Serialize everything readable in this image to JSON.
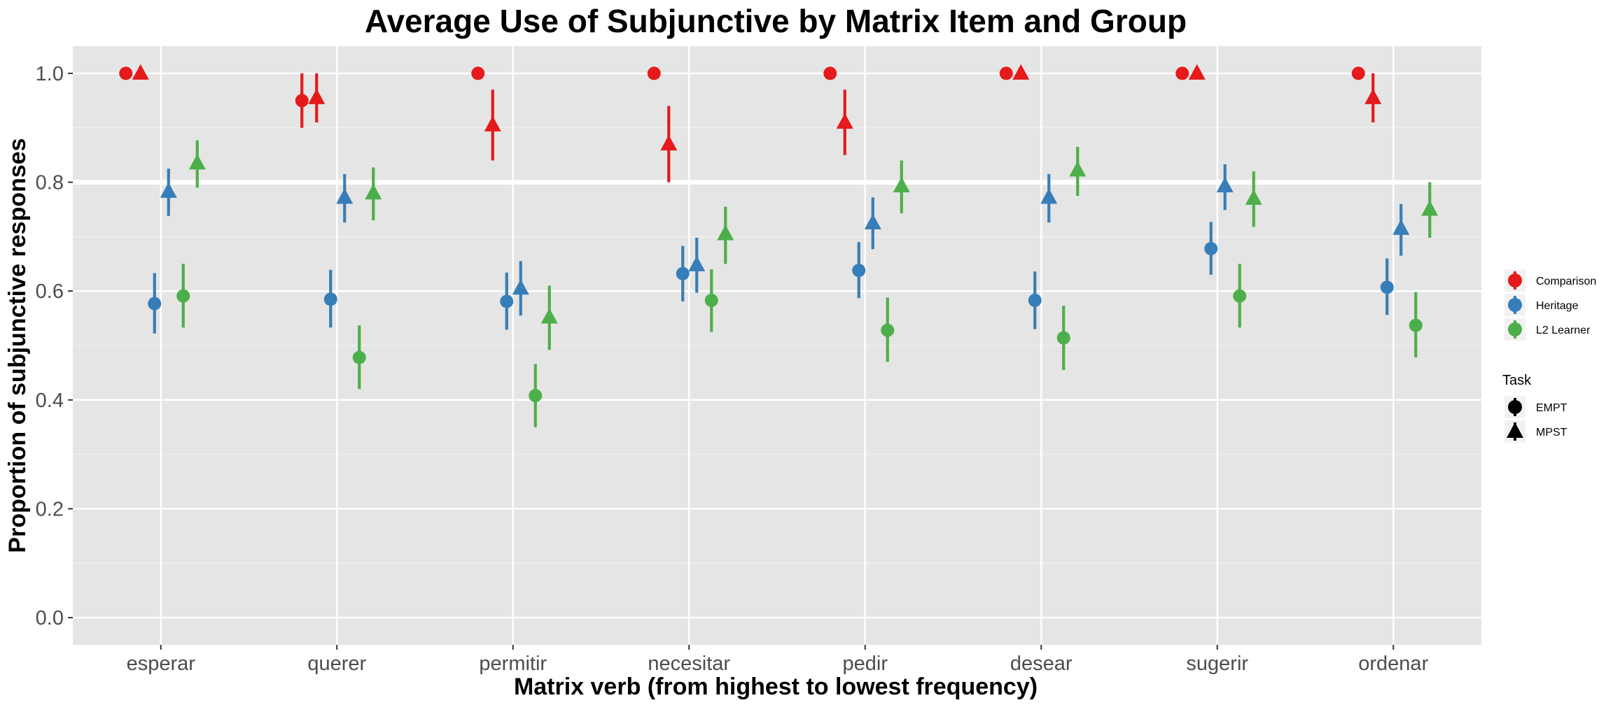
{
  "chart_data": {
    "type": "scatter",
    "title": "Average Use of Subjunctive by Matrix Item and Group",
    "xlabel": "Matrix verb (from highest to lowest frequency)",
    "ylabel": "Proportion of subjunctive responses",
    "categories": [
      "esperar",
      "querer",
      "permitir",
      "necesitar",
      "pedir",
      "desear",
      "sugerir",
      "ordenar"
    ],
    "ylim": [
      -0.05,
      1.05
    ],
    "yticks": [
      0.0,
      0.2,
      0.4,
      0.6,
      0.8,
      1.0
    ],
    "ytick_labels": [
      "0.0",
      "0.2",
      "0.4",
      "0.6",
      "0.8",
      "1.0"
    ],
    "grid": true,
    "reference_line": 0.8,
    "legend_position": "right",
    "groups_legend": [
      {
        "name": "Comparison",
        "color": "#e41a1c"
      },
      {
        "name": "Heritage",
        "color": "#377eb8"
      },
      {
        "name": "L2 Learner",
        "color": "#4daf4a"
      }
    ],
    "task_legend_title": "Task",
    "tasks_legend": [
      {
        "name": "EMPT",
        "shape": "circle"
      },
      {
        "name": "MPST",
        "shape": "triangle"
      }
    ],
    "series": [
      {
        "group": "Comparison",
        "task": "EMPT",
        "color": "#e41a1c",
        "shape": "circle",
        "values": [
          1.0,
          0.95,
          1.0,
          1.0,
          1.0,
          1.0,
          1.0,
          1.0
        ],
        "lower": [
          1.0,
          0.9,
          1.0,
          1.0,
          1.0,
          1.0,
          1.0,
          1.0
        ],
        "upper": [
          1.0,
          1.0,
          1.0,
          1.0,
          1.0,
          1.0,
          1.0,
          1.0
        ]
      },
      {
        "group": "Comparison",
        "task": "MPST",
        "color": "#e41a1c",
        "shape": "triangle",
        "values": [
          1.0,
          0.955,
          0.905,
          0.87,
          0.91,
          1.0,
          1.0,
          0.955
        ],
        "lower": [
          1.0,
          0.91,
          0.84,
          0.8,
          0.85,
          1.0,
          1.0,
          0.91
        ],
        "upper": [
          1.0,
          1.0,
          0.97,
          0.94,
          0.97,
          1.0,
          1.0,
          1.0
        ]
      },
      {
        "group": "Heritage",
        "task": "EMPT",
        "color": "#377eb8",
        "shape": "circle",
        "values": [
          0.577,
          0.585,
          0.581,
          0.632,
          0.638,
          0.583,
          0.678,
          0.607
        ],
        "lower": [
          0.522,
          0.533,
          0.529,
          0.581,
          0.587,
          0.53,
          0.63,
          0.556
        ],
        "upper": [
          0.633,
          0.639,
          0.634,
          0.683,
          0.69,
          0.636,
          0.727,
          0.66
        ]
      },
      {
        "group": "Heritage",
        "task": "MPST",
        "color": "#377eb8",
        "shape": "triangle",
        "values": [
          0.783,
          0.772,
          0.605,
          0.648,
          0.725,
          0.772,
          0.793,
          0.715
        ],
        "lower": [
          0.738,
          0.726,
          0.555,
          0.597,
          0.677,
          0.726,
          0.749,
          0.665
        ],
        "upper": [
          0.825,
          0.815,
          0.655,
          0.698,
          0.772,
          0.815,
          0.833,
          0.76
        ]
      },
      {
        "group": "L2 Learner",
        "task": "EMPT",
        "color": "#4daf4a",
        "shape": "circle",
        "values": [
          0.591,
          0.478,
          0.408,
          0.583,
          0.528,
          0.514,
          0.591,
          0.537
        ],
        "lower": [
          0.533,
          0.42,
          0.35,
          0.525,
          0.47,
          0.455,
          0.533,
          0.478
        ],
        "upper": [
          0.65,
          0.537,
          0.466,
          0.64,
          0.588,
          0.573,
          0.65,
          0.598
        ]
      },
      {
        "group": "L2 Learner",
        "task": "MPST",
        "color": "#4daf4a",
        "shape": "triangle",
        "values": [
          0.835,
          0.78,
          0.552,
          0.705,
          0.793,
          0.822,
          0.77,
          0.75
        ],
        "lower": [
          0.79,
          0.73,
          0.492,
          0.65,
          0.743,
          0.775,
          0.718,
          0.698
        ],
        "upper": [
          0.877,
          0.827,
          0.61,
          0.755,
          0.84,
          0.865,
          0.82,
          0.8
        ]
      }
    ]
  }
}
